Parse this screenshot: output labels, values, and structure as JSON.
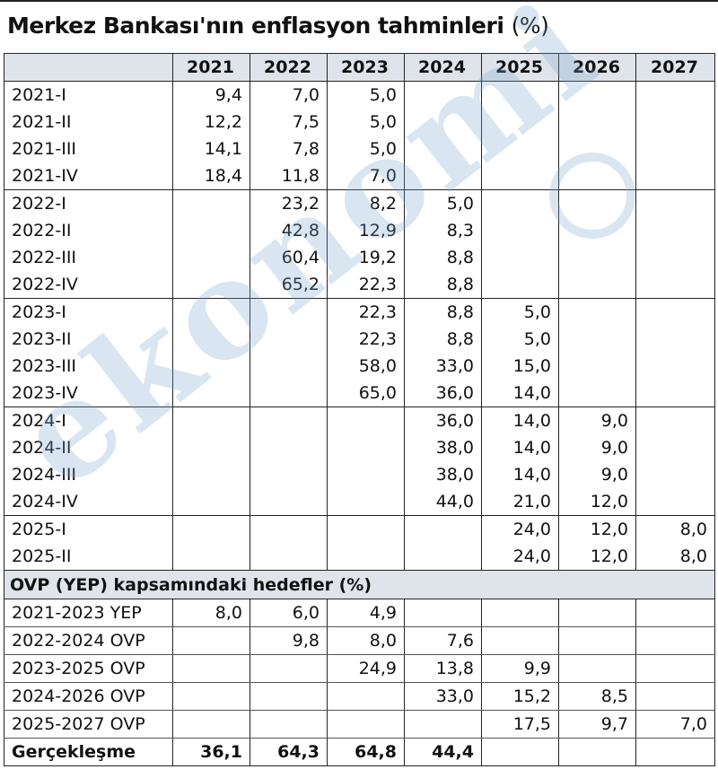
{
  "title": "Merkez Bankası'nın enflasyon tahminleri",
  "title_unit": "(%)",
  "columns": [
    "2021",
    "2022",
    "2023",
    "2024",
    "2025",
    "2026",
    "2027"
  ],
  "forecast_rows": [
    {
      "label": "2021-I",
      "values": [
        "9,4",
        "7,0",
        "5,0",
        "",
        "",
        "",
        ""
      ],
      "group_start": true
    },
    {
      "label": "2021-II",
      "values": [
        "12,2",
        "7,5",
        "5,0",
        "",
        "",
        "",
        ""
      ]
    },
    {
      "label": "2021-III",
      "values": [
        "14,1",
        "7,8",
        "5,0",
        "",
        "",
        "",
        ""
      ]
    },
    {
      "label": "2021-IV",
      "values": [
        "18,4",
        "11,8",
        "7,0",
        "",
        "",
        "",
        ""
      ]
    },
    {
      "label": "2022-I",
      "values": [
        "",
        "23,2",
        "8,2",
        "5,0",
        "",
        "",
        ""
      ],
      "group_start": true
    },
    {
      "label": "2022-II",
      "values": [
        "",
        "42,8",
        "12,9",
        "8,3",
        "",
        "",
        ""
      ]
    },
    {
      "label": "2022-III",
      "values": [
        "",
        "60,4",
        "19,2",
        "8,8",
        "",
        "",
        ""
      ]
    },
    {
      "label": "2022-IV",
      "values": [
        "",
        "65,2",
        "22,3",
        "8,8",
        "",
        "",
        ""
      ]
    },
    {
      "label": "2023-I",
      "values": [
        "",
        "",
        "22,3",
        "8,8",
        "5,0",
        "",
        ""
      ],
      "group_start": true
    },
    {
      "label": "2023-II",
      "values": [
        "",
        "",
        "22,3",
        "8,8",
        "5,0",
        "",
        ""
      ]
    },
    {
      "label": "2023-III",
      "values": [
        "",
        "",
        "58,0",
        "33,0",
        "15,0",
        "",
        ""
      ]
    },
    {
      "label": "2023-IV",
      "values": [
        "",
        "",
        "65,0",
        "36,0",
        "14,0",
        "",
        ""
      ]
    },
    {
      "label": "2024-I",
      "values": [
        "",
        "",
        "",
        "36,0",
        "14,0",
        "9,0",
        ""
      ],
      "group_start": true
    },
    {
      "label": "2024-II",
      "values": [
        "",
        "",
        "",
        "38,0",
        "14,0",
        "9,0",
        ""
      ]
    },
    {
      "label": "2024-III",
      "values": [
        "",
        "",
        "",
        "38,0",
        "14,0",
        "9,0",
        ""
      ]
    },
    {
      "label": "2024-IV",
      "values": [
        "",
        "",
        "",
        "44,0",
        "21,0",
        "12,0",
        ""
      ]
    },
    {
      "label": "2025-I",
      "values": [
        "",
        "",
        "",
        "",
        "24,0",
        "12,0",
        "8,0"
      ],
      "group_start": true
    },
    {
      "label": "2025-II",
      "values": [
        "",
        "",
        "",
        "",
        "24,0",
        "12,0",
        "8,0"
      ]
    }
  ],
  "targets_heading": "OVP (YEP) kapsamındaki hedefler (%)",
  "target_rows": [
    {
      "label": "2021-2023 YEP",
      "values": [
        "8,0",
        "6,0",
        "4,9",
        "",
        "",
        "",
        ""
      ]
    },
    {
      "label": "2022-2024 OVP",
      "values": [
        "",
        "9,8",
        "8,0",
        "7,6",
        "",
        "",
        ""
      ]
    },
    {
      "label": "2023-2025 OVP",
      "values": [
        "",
        "",
        "24,9",
        "13,8",
        "9,9",
        "",
        ""
      ]
    },
    {
      "label": "2024-2026 OVP",
      "values": [
        "",
        "",
        "",
        "33,0",
        "15,2",
        "8,5",
        ""
      ]
    },
    {
      "label": "2025-2027 OVP",
      "values": [
        "",
        "",
        "",
        "",
        "17,5",
        "9,7",
        "7,0"
      ]
    }
  ],
  "actual_row": {
    "label": "Gerçekleşme",
    "values": [
      "36,1",
      "64,3",
      "64,8",
      "44,4",
      "",
      "",
      ""
    ]
  },
  "watermark_text": "ekonomi"
}
